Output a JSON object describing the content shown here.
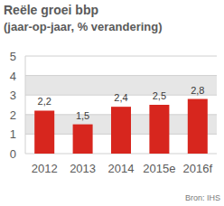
{
  "chart_data": {
    "type": "bar",
    "title": "Reële groei bbp",
    "subtitle": "(jaar-op-jaar, % verandering)",
    "categories": [
      "2012",
      "2013",
      "2014",
      "2015e",
      "2016f"
    ],
    "values": [
      2.2,
      1.5,
      2.4,
      2.5,
      2.8
    ],
    "value_labels": [
      "2,2",
      "1,5",
      "2,4",
      "2,5",
      "2,8"
    ],
    "color": "#d7261e",
    "ylim": [
      0,
      5
    ],
    "yticks": [
      0,
      1,
      2,
      3,
      4,
      5
    ],
    "grid": true,
    "data_labels": true,
    "annotations": [
      "Bron: IHS"
    ]
  }
}
